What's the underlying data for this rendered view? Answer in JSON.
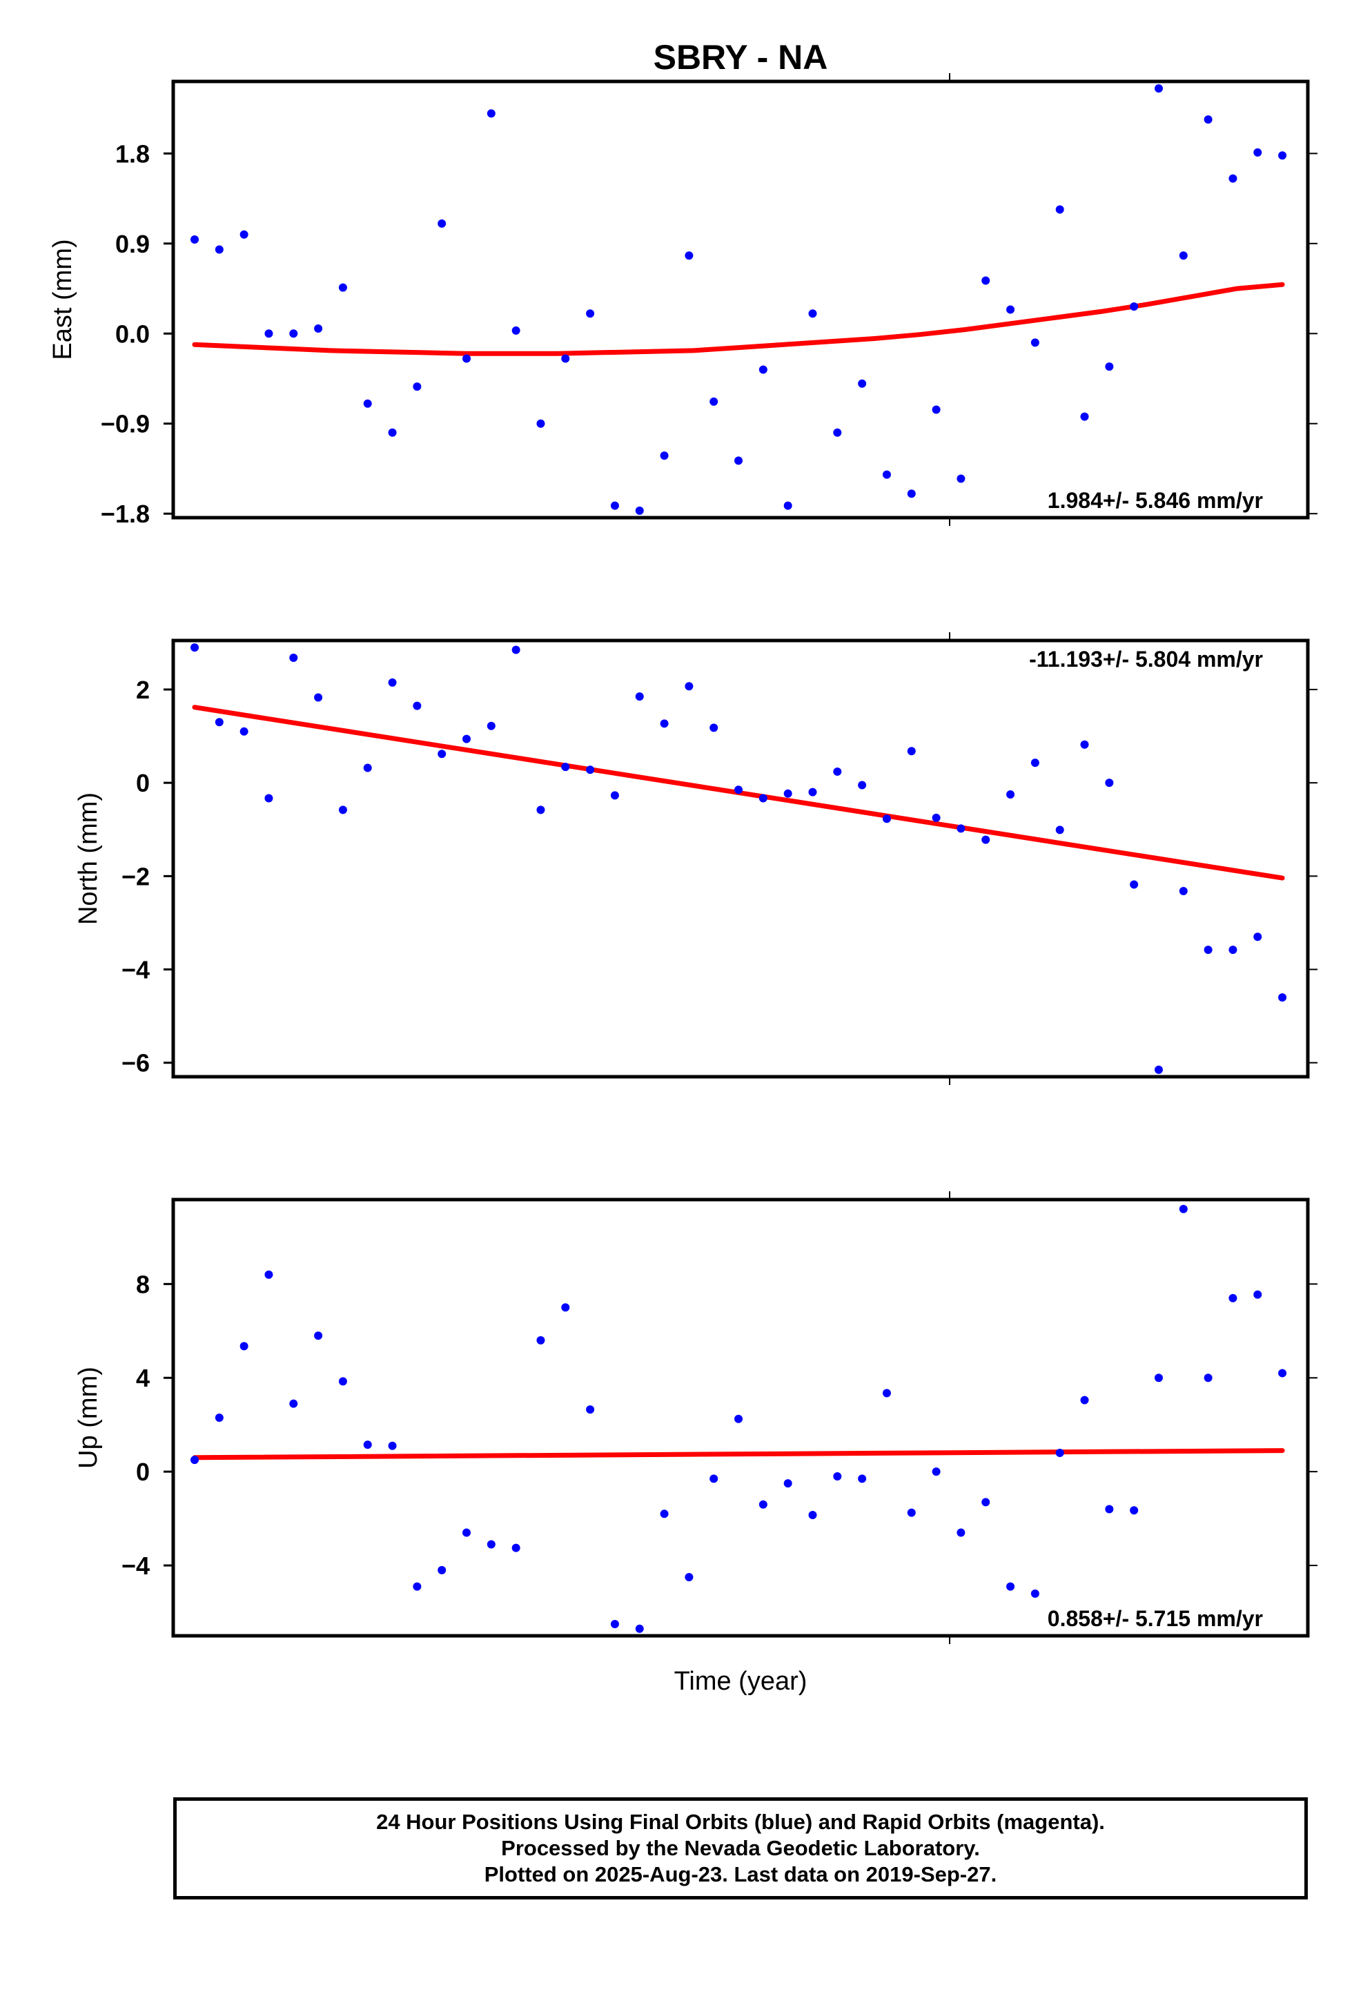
{
  "chart_data": {
    "title": "SBRY - NA",
    "xlabel": "Time (year)",
    "marker_color": "#0000ff",
    "fit_color": "#ff0000",
    "panels": [
      {
        "type": "scatter",
        "ylabel": "East (mm)",
        "ylim": [
          -1.84,
          2.52
        ],
        "yticks": [
          1.8,
          0.9,
          0.0,
          -0.9,
          -1.8
        ],
        "ytick_labels": [
          "1.8",
          "0.9",
          "0.0",
          "−0.9",
          "−1.8"
        ],
        "rate": "1.984+/- 5.846 mm/yr",
        "rate_position": "bottom-right",
        "x": [
          0,
          1,
          2,
          3,
          4,
          5,
          6,
          7,
          8,
          9,
          10,
          11,
          12,
          13,
          14,
          15,
          16,
          17,
          18,
          19,
          20,
          21,
          22,
          23,
          24,
          25,
          26,
          27,
          28,
          29,
          30,
          31,
          32,
          33,
          34,
          35,
          36,
          37,
          38,
          39,
          40,
          41,
          42,
          43,
          44
        ],
        "y": [
          0.94,
          0.84,
          0.99,
          0.0,
          0.0,
          0.05,
          0.46,
          -0.7,
          -0.99,
          -0.53,
          1.1,
          -0.25,
          2.2,
          0.03,
          -0.9,
          -0.25,
          0.2,
          -1.72,
          -1.77,
          -1.22,
          0.78,
          -0.68,
          -1.27,
          -0.36,
          -1.72,
          0.2,
          -0.99,
          -0.5,
          -1.41,
          -1.6,
          -0.76,
          -1.45,
          0.53,
          0.24,
          -0.09,
          1.24,
          -0.83,
          -0.33,
          0.27,
          2.45,
          0.78,
          2.14,
          1.55,
          1.81,
          1.78
        ],
        "fit": [
          -0.11,
          -0.13,
          -0.15,
          -0.17,
          -0.18,
          -0.19,
          -0.2,
          -0.2,
          -0.2,
          -0.19,
          -0.18,
          -0.17,
          -0.14,
          -0.11,
          -0.08,
          -0.05,
          -0.01,
          0.04,
          0.1,
          0.16,
          0.22,
          0.29,
          0.37,
          0.45,
          0.49
        ]
      },
      {
        "type": "scatter",
        "ylabel": "North (mm)",
        "ylim": [
          -6.3,
          3.05
        ],
        "yticks": [
          2,
          0,
          -2,
          -4,
          -6
        ],
        "ytick_labels": [
          "2",
          "0",
          "−2",
          "−4",
          "−6"
        ],
        "rate": "-11.193+/- 5.804 mm/yr",
        "rate_position": "top-right",
        "x": [
          0,
          1,
          2,
          3,
          4,
          5,
          6,
          7,
          8,
          9,
          10,
          11,
          12,
          13,
          14,
          15,
          16,
          17,
          18,
          19,
          20,
          21,
          22,
          23,
          24,
          25,
          26,
          27,
          28,
          29,
          30,
          31,
          32,
          33,
          34,
          35,
          36,
          37,
          38,
          39,
          40,
          41,
          42,
          43,
          44
        ],
        "y": [
          2.9,
          1.3,
          1.1,
          -0.33,
          2.68,
          1.83,
          -0.58,
          0.32,
          2.15,
          1.65,
          0.62,
          0.94,
          1.22,
          2.85,
          -0.58,
          0.34,
          0.28,
          -0.27,
          1.85,
          1.27,
          2.07,
          1.18,
          -0.15,
          -0.33,
          -0.23,
          -0.2,
          0.24,
          -0.05,
          -0.77,
          0.68,
          -0.75,
          -0.98,
          -1.22,
          -0.25,
          0.43,
          -1.01,
          0.82,
          0.0,
          -2.18,
          -6.15,
          -2.32,
          -3.58,
          -3.58,
          -3.3,
          -4.6
        ],
        "fit": [
          1.62,
          -2.04
        ]
      },
      {
        "type": "scatter",
        "ylabel": "Up (mm)",
        "ylim": [
          -7.0,
          11.6
        ],
        "yticks": [
          8,
          4,
          0,
          -4
        ],
        "ytick_labels": [
          "8",
          "4",
          "0",
          "−4"
        ],
        "rate": "0.858+/- 5.715 mm/yr",
        "rate_position": "bottom-right",
        "x": [
          0,
          1,
          2,
          3,
          4,
          5,
          6,
          7,
          8,
          9,
          10,
          11,
          12,
          13,
          14,
          15,
          16,
          17,
          18,
          19,
          20,
          21,
          22,
          23,
          24,
          25,
          26,
          27,
          28,
          29,
          30,
          31,
          32,
          33,
          34,
          35,
          36,
          37,
          38,
          39,
          40,
          41,
          42,
          43,
          44
        ],
        "y": [
          0.5,
          2.3,
          5.35,
          8.4,
          2.9,
          5.8,
          3.85,
          1.15,
          1.1,
          -4.9,
          -4.2,
          -2.6,
          -3.1,
          -3.25,
          5.6,
          7.0,
          2.65,
          -6.5,
          -6.7,
          -1.8,
          -4.5,
          -0.3,
          2.25,
          -1.4,
          -0.5,
          -1.85,
          -0.2,
          -0.3,
          3.35,
          -1.75,
          0.0,
          -2.6,
          -1.3,
          -4.9,
          -5.2,
          0.8,
          3.05,
          -1.6,
          -1.65,
          4.0,
          11.2,
          4.0,
          7.4,
          7.55,
          4.2
        ],
        "fit": [
          0.6,
          0.9
        ]
      }
    ]
  },
  "footer": {
    "line1": "24 Hour Positions Using Final Orbits (blue) and Rapid Orbits (magenta).",
    "line2": "Processed by the Nevada Geodetic Laboratory.",
    "line3": "Plotted on 2025-Aug-23. Last data on 2019-Sep-27."
  }
}
